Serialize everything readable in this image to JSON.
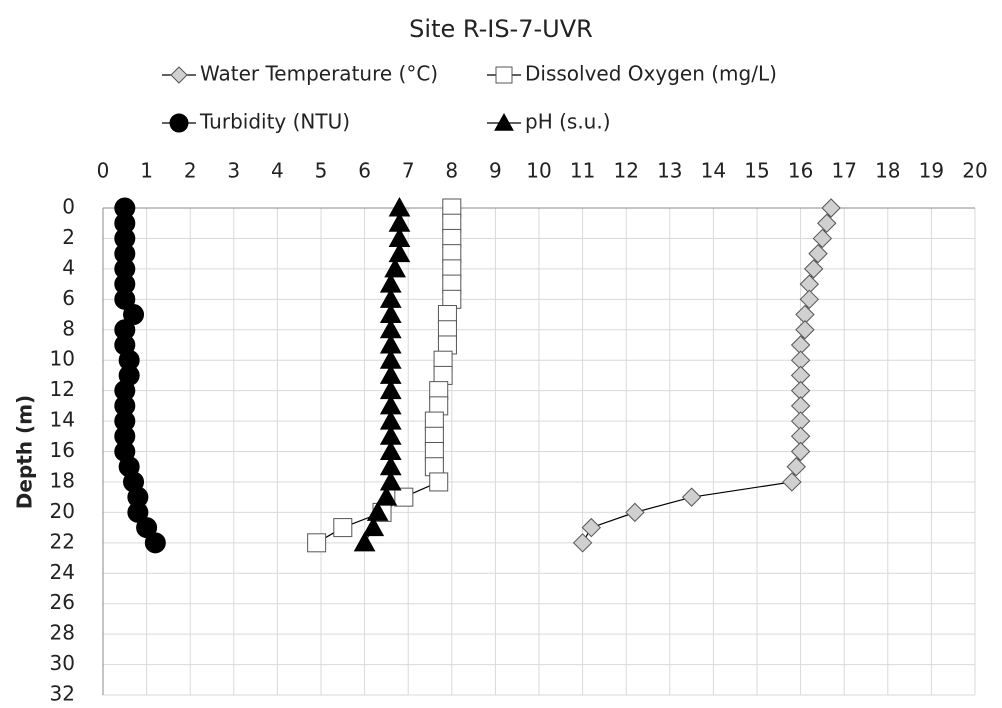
{
  "chart_data": {
    "type": "profile",
    "title": "Site R-IS-7-UVR",
    "y_label": "Depth (m)",
    "y": [
      0,
      1,
      2,
      3,
      4,
      5,
      6,
      7,
      8,
      9,
      10,
      11,
      12,
      13,
      14,
      15,
      16,
      17,
      18,
      19,
      20,
      21,
      22
    ],
    "ylim": [
      0,
      32
    ],
    "yticks": [
      0,
      2,
      4,
      6,
      8,
      10,
      12,
      14,
      16,
      18,
      20,
      22,
      24,
      26,
      28,
      30,
      32
    ],
    "y_inverted": true,
    "xlim": [
      0,
      20
    ],
    "xticks": [
      0,
      1,
      2,
      3,
      4,
      5,
      6,
      7,
      8,
      9,
      10,
      11,
      12,
      13,
      14,
      15,
      16,
      17,
      18,
      19,
      20
    ],
    "x_axis_position": "top",
    "grid": true,
    "series": [
      {
        "name": "Water Temperature (°C)",
        "marker": "diamond",
        "color": "#d0d0d0",
        "values": [
          16.7,
          16.6,
          16.5,
          16.4,
          16.3,
          16.2,
          16.2,
          16.1,
          16.1,
          16.0,
          16.0,
          16.0,
          16.0,
          16.0,
          16.0,
          16.0,
          16.0,
          15.9,
          15.8,
          13.5,
          12.2,
          11.2,
          11.0
        ]
      },
      {
        "name": "Dissolved Oxygen (mg/L)",
        "marker": "square",
        "color": "#ffffff",
        "values": [
          8.0,
          8.0,
          8.0,
          8.0,
          8.0,
          8.0,
          8.0,
          7.9,
          7.9,
          7.9,
          7.8,
          7.8,
          7.7,
          7.7,
          7.6,
          7.6,
          7.6,
          7.6,
          7.7,
          6.9,
          6.4,
          5.5,
          4.9
        ]
      },
      {
        "name": "Turbidity (NTU)",
        "marker": "circle",
        "color": "#000000",
        "values": [
          0.5,
          0.5,
          0.5,
          0.5,
          0.5,
          0.5,
          0.5,
          0.7,
          0.5,
          0.5,
          0.6,
          0.6,
          0.5,
          0.5,
          0.5,
          0.5,
          0.5,
          0.6,
          0.7,
          0.8,
          0.8,
          1.0,
          1.2
        ]
      },
      {
        "name": "pH (s.u.)",
        "marker": "triangle",
        "color": "#000000",
        "values": [
          6.8,
          6.8,
          6.8,
          6.8,
          6.7,
          6.6,
          6.6,
          6.6,
          6.6,
          6.6,
          6.6,
          6.6,
          6.6,
          6.6,
          6.6,
          6.6,
          6.6,
          6.6,
          6.6,
          6.5,
          6.3,
          6.2,
          6.0
        ]
      }
    ]
  }
}
